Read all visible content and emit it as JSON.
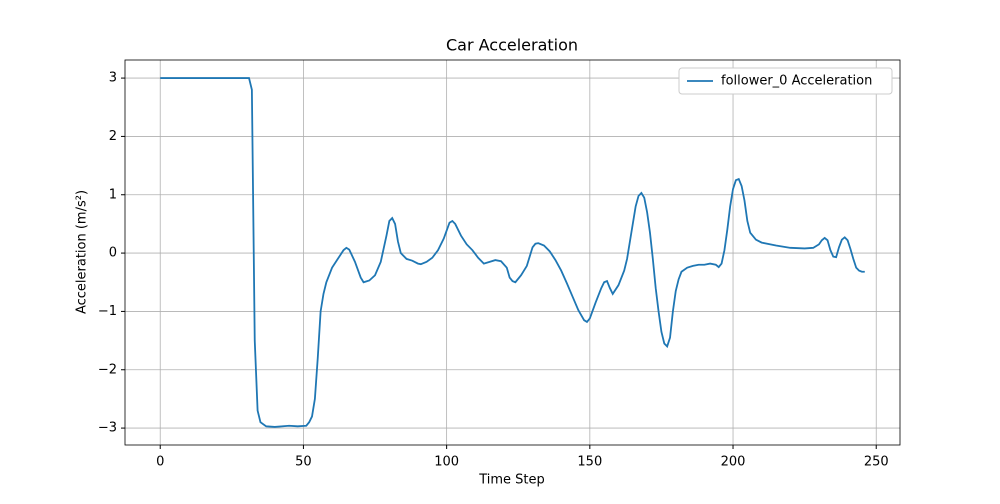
{
  "chart_data": {
    "type": "line",
    "title": "Car Acceleration",
    "x_label": "Time Step",
    "y_label": "Acceleration (m/s²)",
    "x": [
      0,
      31,
      32,
      33,
      34,
      35,
      37,
      40,
      45,
      48,
      51,
      52,
      53,
      54,
      55,
      56,
      57,
      58,
      60,
      62,
      64,
      65,
      66,
      68,
      70,
      71,
      73,
      75,
      77,
      79,
      80,
      81,
      82,
      83,
      84,
      86,
      88,
      90,
      91,
      93,
      95,
      97,
      99,
      101,
      102,
      103,
      105,
      107,
      109,
      111,
      113,
      115,
      117,
      119,
      121,
      122,
      123,
      124,
      126,
      128,
      130,
      131,
      132,
      134,
      136,
      138,
      140,
      142,
      144,
      146,
      148,
      149,
      150,
      152,
      154,
      155,
      156,
      157,
      158,
      160,
      162,
      163,
      164,
      165,
      166,
      167,
      168,
      169,
      170,
      171,
      172,
      173,
      174,
      175,
      176,
      177,
      178,
      179,
      180,
      181,
      182,
      184,
      186,
      188,
      190,
      192,
      194,
      195,
      196,
      197,
      198,
      199,
      200,
      201,
      202,
      203,
      204,
      205,
      206,
      208,
      210,
      215,
      220,
      225,
      228,
      230,
      231,
      232,
      233,
      234,
      235,
      236,
      237,
      238,
      239,
      240,
      241,
      242,
      243,
      244,
      245,
      246
    ],
    "series": [
      {
        "name": "follower_0 Acceleration",
        "color": "#1f77b4",
        "values": [
          3,
          3,
          2.8,
          -1.5,
          -2.7,
          -2.9,
          -2.97,
          -2.98,
          -2.96,
          -2.97,
          -2.96,
          -2.9,
          -2.8,
          -2.5,
          -1.8,
          -1.0,
          -0.7,
          -0.5,
          -0.25,
          -0.1,
          0.05,
          0.09,
          0.06,
          -0.15,
          -0.42,
          -0.5,
          -0.47,
          -0.38,
          -0.15,
          0.3,
          0.55,
          0.6,
          0.5,
          0.2,
          0.0,
          -0.1,
          -0.13,
          -0.18,
          -0.19,
          -0.15,
          -0.08,
          0.05,
          0.25,
          0.52,
          0.55,
          0.5,
          0.3,
          0.15,
          0.05,
          -0.08,
          -0.18,
          -0.15,
          -0.12,
          -0.14,
          -0.25,
          -0.42,
          -0.48,
          -0.5,
          -0.38,
          -0.22,
          0.1,
          0.16,
          0.17,
          0.13,
          0.03,
          -0.12,
          -0.3,
          -0.52,
          -0.75,
          -0.98,
          -1.15,
          -1.18,
          -1.12,
          -0.85,
          -0.6,
          -0.5,
          -0.48,
          -0.6,
          -0.7,
          -0.55,
          -0.3,
          -0.1,
          0.2,
          0.5,
          0.8,
          0.98,
          1.03,
          0.95,
          0.7,
          0.35,
          -0.1,
          -0.6,
          -1.0,
          -1.35,
          -1.55,
          -1.6,
          -1.45,
          -1.0,
          -0.65,
          -0.45,
          -0.32,
          -0.25,
          -0.22,
          -0.2,
          -0.2,
          -0.18,
          -0.2,
          -0.24,
          -0.18,
          0.05,
          0.4,
          0.8,
          1.1,
          1.25,
          1.27,
          1.15,
          0.9,
          0.55,
          0.35,
          0.23,
          0.18,
          0.13,
          0.09,
          0.08,
          0.09,
          0.15,
          0.22,
          0.26,
          0.22,
          0.05,
          -0.06,
          -0.07,
          0.1,
          0.23,
          0.27,
          0.22,
          0.07,
          -0.1,
          -0.25,
          -0.3,
          -0.32,
          -0.32
        ]
      }
    ],
    "xlim": [
      -12.3,
      258.3
    ],
    "xticks": [
      0,
      50,
      100,
      150,
      200,
      250
    ],
    "ylim": [
      -3.29,
      3.31
    ],
    "yticks": [
      {
        "value": -3,
        "label": "−3"
      },
      {
        "value": -2,
        "label": "−2"
      },
      {
        "value": -1,
        "label": "−1"
      },
      0,
      1,
      2,
      3
    ],
    "grid": true,
    "legend": "upper right"
  }
}
